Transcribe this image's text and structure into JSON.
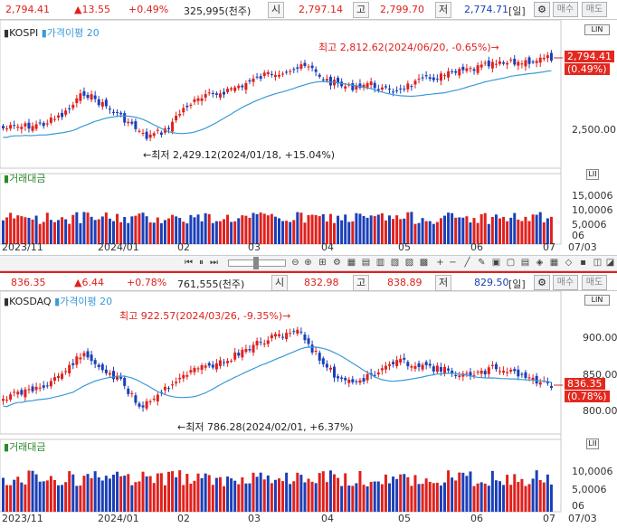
{
  "kospi_header": {
    "price": "2,794.41",
    "change": "▲13.55",
    "change_pct": "+0.49%",
    "volume": "325,995(천주)",
    "open_label": "시",
    "open": "2,797.14",
    "high_label": "고",
    "high": "2,799.70",
    "low_label": "저",
    "low": "2,774.71",
    "period": "[일]",
    "buy_label": "매수",
    "sell_label": "매도"
  },
  "kospi_chart": {
    "legend_name": "KOSPI",
    "legend_ma": "가격이평 20",
    "high_note": "최고 2,812.62(2024/06/20, -0.65%)→",
    "low_note": "←최저 2,429.12(2024/01/18, +15.04%)",
    "current_price": "2,794.41",
    "current_pct": "(0.49%)",
    "y_ticks": [
      "2,500.00"
    ],
    "volume_legend": "거래대금",
    "volume_ticks": [
      "15,0006",
      "10,0006",
      "5,0006",
      "06"
    ]
  },
  "kosdaq_header": {
    "price": "836.35",
    "change": "▲6.44",
    "change_pct": "+0.78%",
    "volume": "761,555(천주)",
    "open_label": "시",
    "open": "832.98",
    "high_label": "고",
    "high": "838.89",
    "low_label": "저",
    "low": "829.50",
    "period": "[일]",
    "buy_label": "매수",
    "sell_label": "매도"
  },
  "kosdaq_chart": {
    "legend_name": "KOSDAQ",
    "legend_ma": "가격이평 20",
    "high_note": "최고 922.57(2024/03/26, -9.35%)→",
    "low_note": "←최저 786.28(2024/02/01, +6.37%)",
    "current_price": "836.35",
    "current_pct": "(0.78%)",
    "y_ticks": [
      "900.00",
      "850.00",
      "800.00"
    ],
    "volume_legend": "거래대금",
    "volume_ticks": [
      "10,0006",
      "5,0006",
      "06"
    ]
  },
  "x_axis": [
    "2023/11",
    "2024/01",
    "02",
    "03",
    "04",
    "05",
    "06",
    "07",
    "07/03"
  ],
  "toolbar": {
    "axis_label": "LIN"
  },
  "colors": {
    "up": "#e0201c",
    "down": "#1a3fb8",
    "ma": "#3a9ad9"
  }
}
